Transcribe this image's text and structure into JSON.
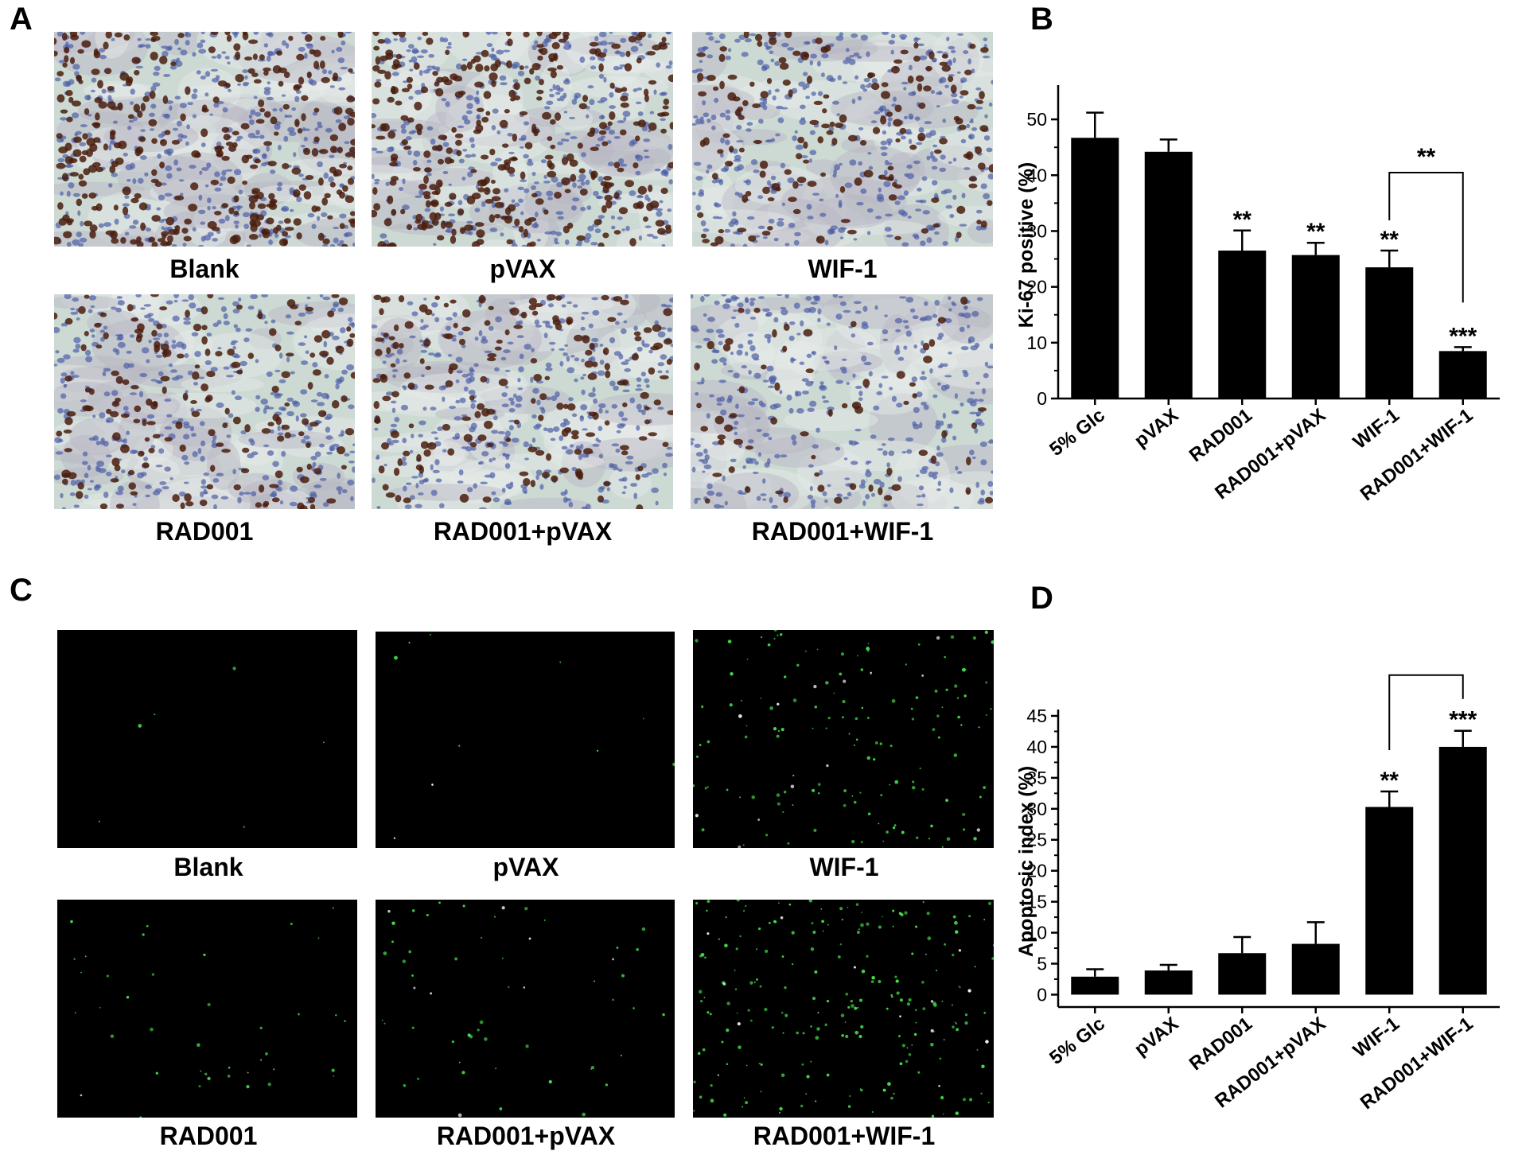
{
  "panels": {
    "a": {
      "letter": "A",
      "captions": [
        "Blank",
        "pVAX",
        "WIF-1",
        "RAD001",
        "RAD001+pVAX",
        "RAD001+WIF-1"
      ]
    },
    "c": {
      "letter": "C",
      "captions": [
        "Blank",
        "pVAX",
        "WIF-1",
        "RAD001",
        "RAD001+pVAX",
        "RAD001+WIF-1"
      ]
    },
    "b": {
      "letter": "B"
    },
    "d": {
      "letter": "D"
    }
  },
  "colors": {
    "bar": "#000000",
    "ihc_background": "#cdd9d3",
    "ihc_brown": "#4a1d0e",
    "ihc_blue": "#4e5fa6",
    "tunel_background": "#000000",
    "tunel_green": "#46e04a"
  },
  "chart_data": [
    {
      "panel": "B",
      "type": "bar",
      "categories": [
        "5% Glc",
        "pVAX",
        "RAD001",
        "RAD001+pVAX",
        "WIF-1",
        "RAD001+WIF-1"
      ],
      "values": [
        46.7,
        44.2,
        26.5,
        25.7,
        23.5,
        8.5
      ],
      "errors": [
        4.5,
        2.2,
        3.6,
        2.2,
        3.0,
        0.7
      ],
      "significance": [
        "",
        "",
        "**",
        "**",
        "**",
        "***"
      ],
      "comparisons": [
        {
          "from": "WIF-1",
          "to": "RAD001+WIF-1",
          "label": "**"
        }
      ],
      "xlabel": "",
      "ylabel": "Ki-67 positive (%)",
      "ylim": [
        0,
        55
      ],
      "yticks": [
        0,
        10,
        20,
        30,
        40,
        50
      ],
      "grid": false,
      "legend": "none"
    },
    {
      "panel": "D",
      "type": "bar",
      "categories": [
        "5% Glc",
        "pVAX",
        "RAD001",
        "RAD001+pVAX",
        "WIF-1",
        "RAD001+WIF-1"
      ],
      "values": [
        2.9,
        3.9,
        6.7,
        8.2,
        30.3,
        40.0
      ],
      "errors": [
        1.2,
        0.9,
        2.6,
        3.5,
        2.5,
        2.6
      ],
      "significance": [
        "",
        "",
        "",
        "",
        "**",
        "***"
      ],
      "comparisons": [
        {
          "from": "WIF-1",
          "to": "RAD001+WIF-1",
          "label": "**"
        }
      ],
      "xlabel": "",
      "ylabel": "Apoptosic index (%)",
      "ylim": [
        -2,
        45
      ],
      "yticks": [
        0,
        5,
        10,
        15,
        20,
        25,
        30,
        35,
        40,
        45
      ],
      "grid": false,
      "legend": "none"
    }
  ]
}
